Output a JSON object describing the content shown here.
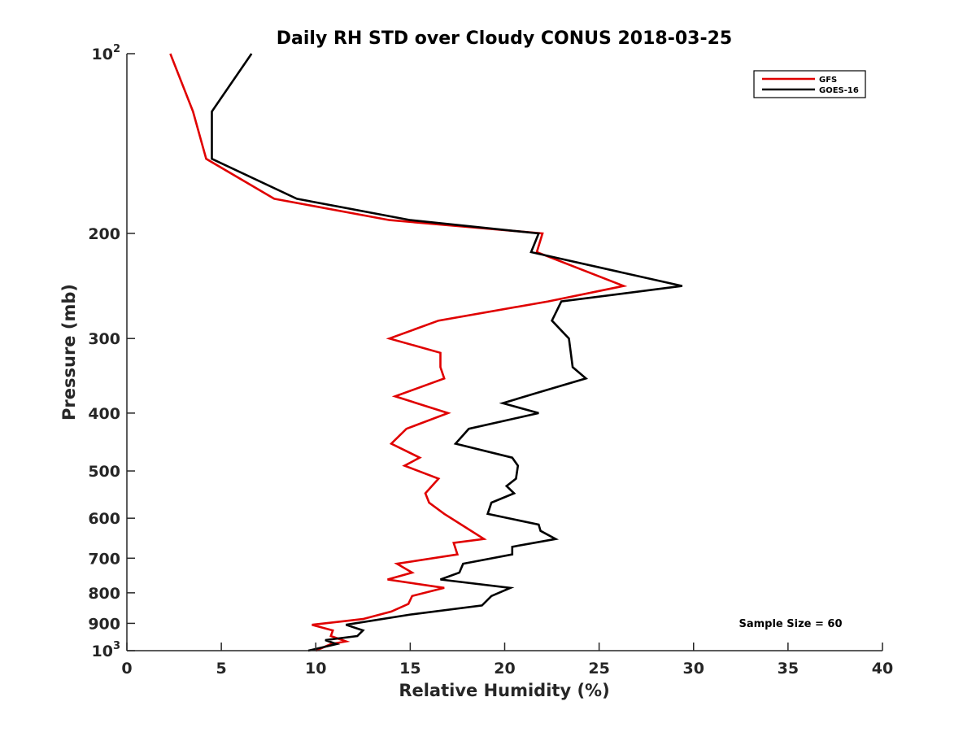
{
  "chart_data": {
    "type": "line",
    "title": "Daily RH STD over Cloudy CONUS 2018-03-25",
    "xlabel": "Relative Humidity (%)",
    "ylabel": "Pressure (mb)",
    "xlim": [
      0,
      40
    ],
    "ylim": [
      100,
      1000
    ],
    "yscale": "log",
    "y_reversed": true,
    "x_ticks": [
      0,
      5,
      10,
      15,
      20,
      25,
      30,
      35,
      40
    ],
    "x_tick_labels": [
      "0",
      "5",
      "10",
      "15",
      "20",
      "25",
      "30",
      "35",
      "40"
    ],
    "y_ticks": [
      100,
      200,
      300,
      400,
      500,
      600,
      700,
      800,
      900,
      1000
    ],
    "y_tick_labels": [
      {
        "base": "10",
        "sup": "2"
      },
      {
        "base": "200"
      },
      {
        "base": "300"
      },
      {
        "base": "400"
      },
      {
        "base": "500"
      },
      {
        "base": "600"
      },
      {
        "base": "700"
      },
      {
        "base": "800"
      },
      {
        "base": "900"
      },
      {
        "base": "10",
        "sup": "3"
      }
    ],
    "grid": false,
    "legend_position": "top-right",
    "annotation": "Sample Size = 60",
    "series": [
      {
        "name": "GFS",
        "color": "#e00000",
        "points": [
          [
            2.3,
            100
          ],
          [
            3.5,
            125
          ],
          [
            4.2,
            150
          ],
          [
            7.8,
            175
          ],
          [
            13.9,
            190
          ],
          [
            22.0,
            200
          ],
          [
            21.7,
            215
          ],
          [
            26.3,
            245
          ],
          [
            22.3,
            260
          ],
          [
            16.5,
            280
          ],
          [
            13.9,
            300
          ],
          [
            16.6,
            317
          ],
          [
            16.6,
            335
          ],
          [
            16.8,
            350
          ],
          [
            14.2,
            375
          ],
          [
            17.0,
            400
          ],
          [
            14.8,
            425
          ],
          [
            14.0,
            450
          ],
          [
            15.5,
            475
          ],
          [
            14.7,
            490
          ],
          [
            16.5,
            515
          ],
          [
            15.8,
            545
          ],
          [
            16.0,
            565
          ],
          [
            16.8,
            590
          ],
          [
            17.7,
            615
          ],
          [
            18.9,
            650
          ],
          [
            17.3,
            660
          ],
          [
            17.5,
            690
          ],
          [
            14.3,
            715
          ],
          [
            15.1,
            740
          ],
          [
            13.8,
            760
          ],
          [
            16.8,
            785
          ],
          [
            15.1,
            810
          ],
          [
            14.9,
            835
          ],
          [
            14.0,
            860
          ],
          [
            12.5,
            885
          ],
          [
            9.8,
            905
          ],
          [
            10.9,
            925
          ],
          [
            10.8,
            945
          ],
          [
            11.6,
            965
          ],
          [
            10.8,
            975
          ],
          [
            10.0,
            1000
          ]
        ]
      },
      {
        "name": "GOES-16",
        "color": "#000000",
        "points": [
          [
            6.6,
            100
          ],
          [
            4.5,
            125
          ],
          [
            4.5,
            150
          ],
          [
            9.0,
            175
          ],
          [
            15.0,
            190
          ],
          [
            21.8,
            200
          ],
          [
            21.4,
            215
          ],
          [
            29.4,
            245
          ],
          [
            23.0,
            260
          ],
          [
            22.5,
            280
          ],
          [
            23.4,
            300
          ],
          [
            23.5,
            317
          ],
          [
            23.6,
            335
          ],
          [
            24.3,
            350
          ],
          [
            21.7,
            370
          ],
          [
            19.9,
            385
          ],
          [
            21.8,
            400
          ],
          [
            18.1,
            425
          ],
          [
            17.4,
            450
          ],
          [
            20.4,
            475
          ],
          [
            20.7,
            490
          ],
          [
            20.6,
            515
          ],
          [
            20.1,
            530
          ],
          [
            20.5,
            545
          ],
          [
            19.3,
            565
          ],
          [
            19.1,
            590
          ],
          [
            21.8,
            615
          ],
          [
            21.9,
            630
          ],
          [
            22.7,
            650
          ],
          [
            20.4,
            670
          ],
          [
            20.4,
            690
          ],
          [
            17.8,
            715
          ],
          [
            17.6,
            740
          ],
          [
            16.6,
            760
          ],
          [
            20.3,
            785
          ],
          [
            19.3,
            810
          ],
          [
            18.8,
            840
          ],
          [
            15.0,
            870
          ],
          [
            11.6,
            905
          ],
          [
            12.5,
            925
          ],
          [
            12.2,
            945
          ],
          [
            10.5,
            960
          ],
          [
            11.1,
            975
          ],
          [
            9.6,
            1000
          ]
        ]
      }
    ]
  }
}
